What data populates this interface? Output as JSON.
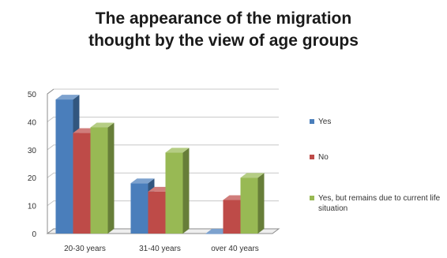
{
  "chart_data": {
    "type": "bar",
    "title_lines": [
      "The appearance of the migration",
      "thought by the view of age groups"
    ],
    "categories": [
      "20-30 years",
      "31-40 years",
      "over 40 years"
    ],
    "series": [
      {
        "name": "Yes",
        "color": "#4a7ebb",
        "values": [
          48,
          18,
          0
        ]
      },
      {
        "name": "No",
        "color": "#be4b48",
        "values": [
          36,
          15,
          12
        ]
      },
      {
        "name": "Yes, but remains due to current life situation",
        "color": "#98b954",
        "values": [
          38,
          29,
          20
        ]
      }
    ],
    "ylim": [
      0,
      50
    ],
    "yticks": [
      0,
      10,
      20,
      30,
      40,
      50
    ],
    "grid": true,
    "legend_position": "right",
    "style": "3d-clustered-column"
  }
}
